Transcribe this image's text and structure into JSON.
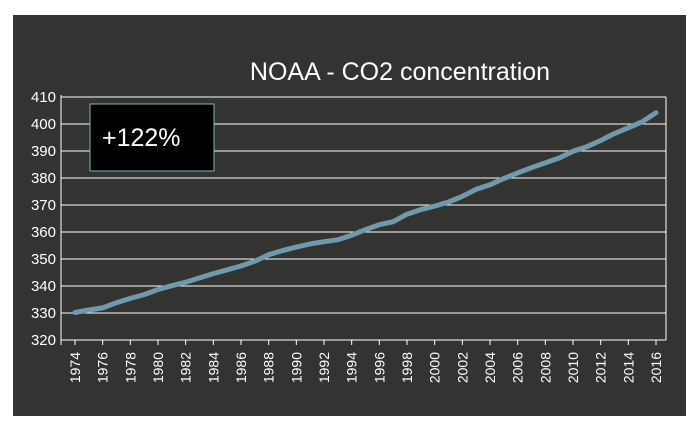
{
  "chart_data": {
    "type": "line",
    "title": "NOAA - CO2 concentration",
    "xlabel": "",
    "ylabel": "",
    "ylim": [
      320,
      410
    ],
    "yticks": [
      "320",
      "330",
      "340",
      "350",
      "360",
      "370",
      "380",
      "390",
      "400",
      "410"
    ],
    "xticks": [
      "1974",
      "1976",
      "1978",
      "1980",
      "1982",
      "1984",
      "1986",
      "1988",
      "1990",
      "1992",
      "1994",
      "1996",
      "1998",
      "2000",
      "2002",
      "2004",
      "2006",
      "2008",
      "2010",
      "2012",
      "2014",
      "2016"
    ],
    "grid": true,
    "annotation": "+122%",
    "colors": {
      "background": "#333331",
      "line": "#6f99ad",
      "grid": "#ffffff",
      "callout_bg": "#000000",
      "callout_border": "#7fb3c9"
    },
    "series": [
      {
        "x": [
          1974,
          1975,
          1976,
          1977,
          1978,
          1979,
          1980,
          1981,
          1982,
          1983,
          1984,
          1985,
          1986,
          1987,
          1988,
          1989,
          1990,
          1991,
          1992,
          1993,
          1994,
          1995,
          1996,
          1997,
          1998,
          1999,
          2000,
          2001,
          2002,
          2003,
          2004,
          2005,
          2006,
          2007,
          2008,
          2009,
          2010,
          2011,
          2012,
          2013,
          2014,
          2015,
          2016
        ],
        "values": [
          330.2,
          331.1,
          331.9,
          333.8,
          335.4,
          336.8,
          338.7,
          340.1,
          341.4,
          343.0,
          344.6,
          346.0,
          347.4,
          349.2,
          351.6,
          353.1,
          354.4,
          355.6,
          356.4,
          357.1,
          358.8,
          360.9,
          362.7,
          363.8,
          366.6,
          368.3,
          369.6,
          371.1,
          373.2,
          375.8,
          377.5,
          379.8,
          381.9,
          383.8,
          385.6,
          387.4,
          389.9,
          391.6,
          393.9,
          396.5,
          398.6,
          400.8,
          404.2
        ]
      }
    ]
  }
}
